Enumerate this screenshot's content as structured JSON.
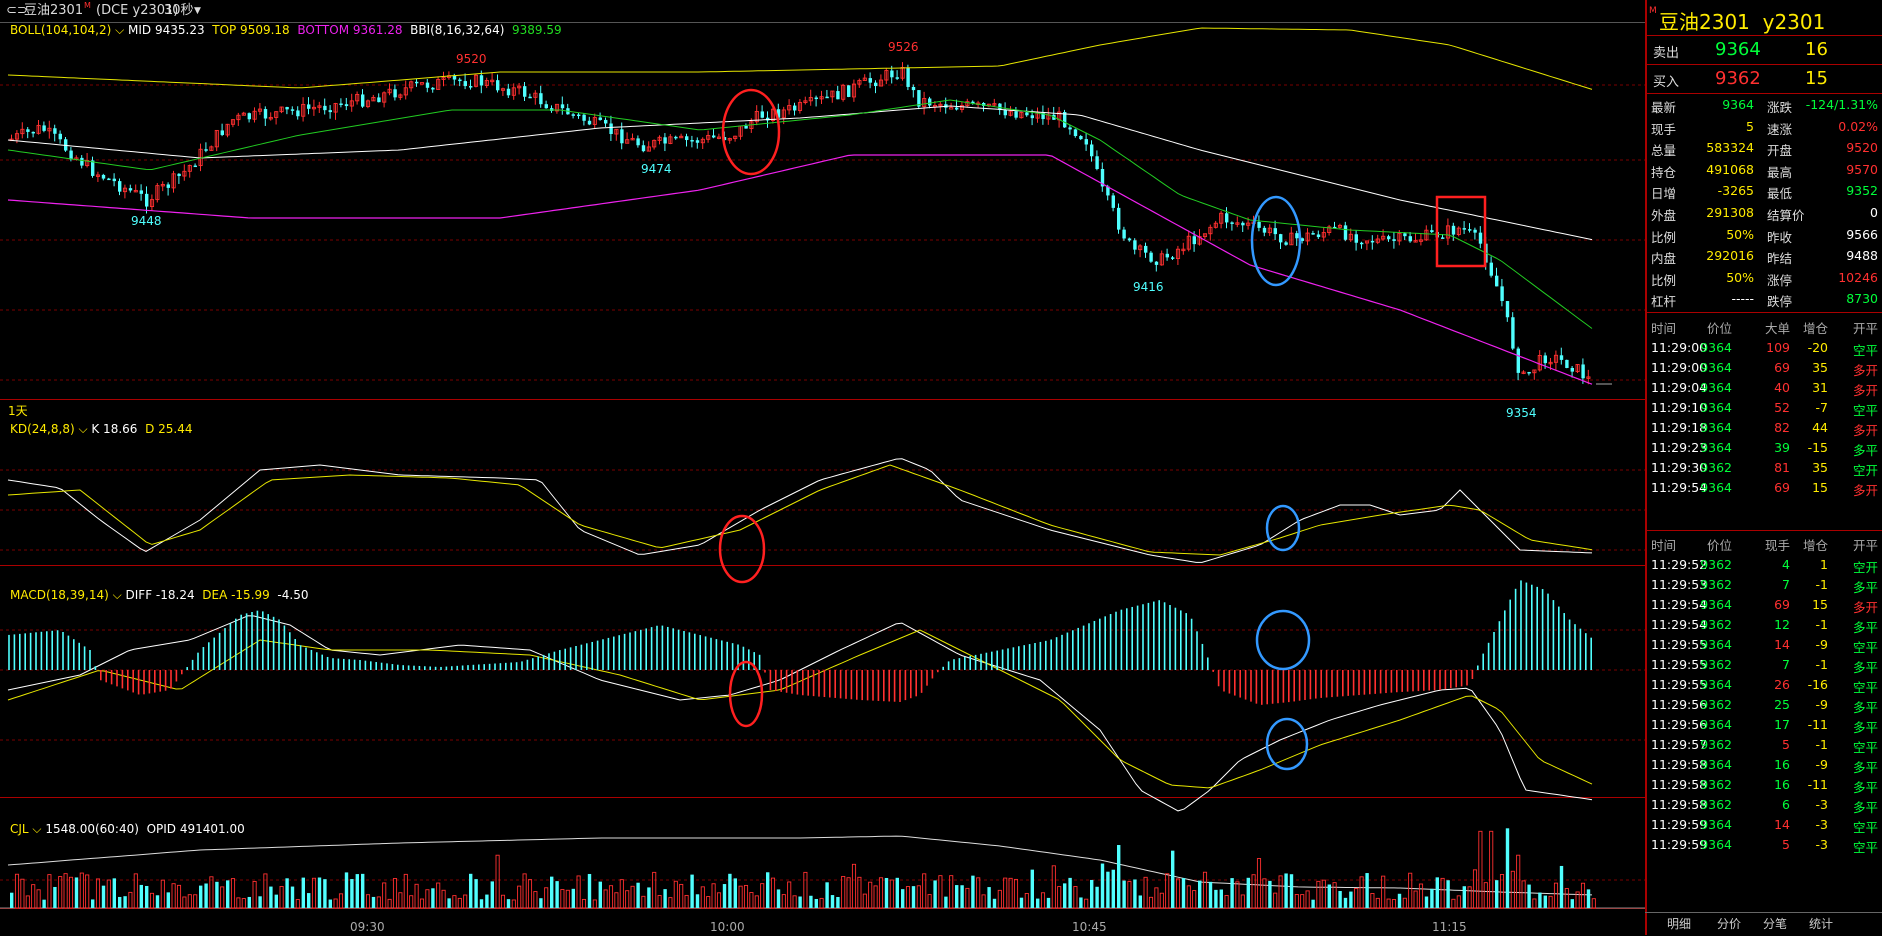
{
  "title_bar": {
    "symbol": "豆油2301",
    "superscript": "M",
    "exchange": "(DCE y2301)",
    "period": "30秒"
  },
  "colors": {
    "up": "#ff3030",
    "down": "#50ffff",
    "mid": "#ffffff",
    "top": "#e6e600",
    "bottom": "#ee22ee",
    "bbi": "#22cc22",
    "k": "#ffffff",
    "d": "#e6e600",
    "annot_red": "#ff2020",
    "annot_blue": "#3399ff",
    "grid": "#7a0000"
  },
  "main_legend": {
    "name": "BOLL(104,104,2)",
    "mid": "MID 9435.23",
    "top": "TOP 9509.18",
    "bottom": "BOTTOM 9361.28",
    "bbi_name": "BBI(8,16,32,64)",
    "bbi": "9389.59"
  },
  "price_marks": {
    "high1": "9520",
    "high2": "9526",
    "low1": "9448",
    "low2": "9474",
    "low3": "9416",
    "low4": "9354"
  },
  "period_label": "1天",
  "kd_legend": {
    "name": "KD(24,8,8)",
    "k": "K 18.66",
    "d": "D 25.44"
  },
  "macd_legend": {
    "name": "MACD(18,39,14)",
    "diff": "DIFF -18.24",
    "dea": "DEA -15.99",
    "macd": "-4.50"
  },
  "vol_legend": {
    "name": "CJL",
    "vol": "1548.00(60:40)",
    "opid": "OPID 491401.00"
  },
  "time_axis": [
    "09:30",
    "10:00",
    "10:45",
    "11:15"
  ],
  "quote": {
    "title": "豆油2301  y2301",
    "sell": {
      "label": "卖出",
      "price": "9364",
      "vol": "16"
    },
    "buy": {
      "label": "买入",
      "price": "9362",
      "vol": "15"
    },
    "stats": [
      {
        "l1": "最新",
        "v1": "9364",
        "c1": "grn",
        "l2": "涨跌",
        "v2": "-124/1.31%",
        "c2": "grn"
      },
      {
        "l1": "现手",
        "v1": "5",
        "c1": "yel",
        "l2": "速涨",
        "v2": "0.02%",
        "c2": "red"
      },
      {
        "l1": "总量",
        "v1": "583324",
        "c1": "yel",
        "l2": "开盘",
        "v2": "9520",
        "c2": "red"
      },
      {
        "l1": "持仓",
        "v1": "491068",
        "c1": "yel",
        "l2": "最高",
        "v2": "9570",
        "c2": "red"
      },
      {
        "l1": "日增",
        "v1": "-3265",
        "c1": "yel",
        "l2": "最低",
        "v2": "9352",
        "c2": "grn"
      },
      {
        "l1": "外盘",
        "v1": "291308",
        "c1": "yel",
        "l2": "结算价",
        "v2": "0",
        "c2": "wht"
      },
      {
        "l1": "比例",
        "v1": "50%",
        "c1": "yel",
        "l2": "昨收",
        "v2": "9566",
        "c2": "wht"
      },
      {
        "l1": "内盘",
        "v1": "292016",
        "c1": "yel",
        "l2": "昨结",
        "v2": "9488",
        "c2": "wht"
      },
      {
        "l1": "比例",
        "v1": "50%",
        "c1": "yel",
        "l2": "涨停",
        "v2": "10246",
        "c2": "red"
      },
      {
        "l1": "杠杆",
        "v1": "-----",
        "c1": "wht",
        "l2": "跌停",
        "v2": "8730",
        "c2": "grn"
      }
    ]
  },
  "table1": {
    "headers": [
      "时间",
      "价位",
      "大单",
      "增仓",
      "开平"
    ],
    "rows": [
      {
        "t": "11:29:00",
        "p": "9364",
        "v": "109",
        "z": "-20",
        "k": "空平",
        "vc": "red",
        "zc": "yel",
        "kc": "grn"
      },
      {
        "t": "11:29:00",
        "p": "9364",
        "v": "69",
        "z": "35",
        "k": "多开",
        "vc": "red",
        "zc": "yel",
        "kc": "red"
      },
      {
        "t": "11:29:04",
        "p": "9364",
        "v": "40",
        "z": "31",
        "k": "多开",
        "vc": "red",
        "zc": "yel",
        "kc": "red"
      },
      {
        "t": "11:29:10",
        "p": "9364",
        "v": "52",
        "z": "-7",
        "k": "空平",
        "vc": "red",
        "zc": "yel",
        "kc": "grn"
      },
      {
        "t": "11:29:18",
        "p": "9364",
        "v": "82",
        "z": "44",
        "k": "多开",
        "vc": "red",
        "zc": "yel",
        "kc": "red"
      },
      {
        "t": "11:29:23",
        "p": "9364",
        "v": "39",
        "z": "-15",
        "k": "多平",
        "vc": "grn",
        "zc": "yel",
        "kc": "grn"
      },
      {
        "t": "11:29:30",
        "p": "9362",
        "v": "81",
        "z": "35",
        "k": "空开",
        "vc": "red",
        "zc": "yel",
        "kc": "grn"
      },
      {
        "t": "11:29:54",
        "p": "9364",
        "v": "69",
        "z": "15",
        "k": "多开",
        "vc": "red",
        "zc": "yel",
        "kc": "red"
      }
    ]
  },
  "table2": {
    "headers": [
      "时间",
      "价位",
      "现手",
      "增仓",
      "开平"
    ],
    "rows": [
      {
        "t": "11:29:52",
        "p": "9362",
        "v": "4",
        "z": "1",
        "k": "空开",
        "vc": "grn",
        "zc": "yel",
        "kc": "grn"
      },
      {
        "t": "11:29:53",
        "p": "9362",
        "v": "7",
        "z": "-1",
        "k": "多平",
        "vc": "grn",
        "zc": "yel",
        "kc": "grn"
      },
      {
        "t": "11:29:54",
        "p": "9364",
        "v": "69",
        "z": "15",
        "k": "多开",
        "vc": "red",
        "zc": "yel",
        "kc": "red"
      },
      {
        "t": "11:29:54",
        "p": "9362",
        "v": "12",
        "z": "-1",
        "k": "多平",
        "vc": "grn",
        "zc": "yel",
        "kc": "grn"
      },
      {
        "t": "11:29:55",
        "p": "9364",
        "v": "14",
        "z": "-9",
        "k": "空平",
        "vc": "red",
        "zc": "yel",
        "kc": "grn"
      },
      {
        "t": "11:29:55",
        "p": "9362",
        "v": "7",
        "z": "-1",
        "k": "多平",
        "vc": "grn",
        "zc": "yel",
        "kc": "grn"
      },
      {
        "t": "11:29:55",
        "p": "9364",
        "v": "26",
        "z": "-16",
        "k": "空平",
        "vc": "red",
        "zc": "yel",
        "kc": "grn"
      },
      {
        "t": "11:29:56",
        "p": "9362",
        "v": "25",
        "z": "-9",
        "k": "多平",
        "vc": "grn",
        "zc": "yel",
        "kc": "grn"
      },
      {
        "t": "11:29:56",
        "p": "9364",
        "v": "17",
        "z": "-11",
        "k": "多平",
        "vc": "grn",
        "zc": "yel",
        "kc": "grn"
      },
      {
        "t": "11:29:57",
        "p": "9362",
        "v": "5",
        "z": "-1",
        "k": "空平",
        "vc": "red",
        "zc": "yel",
        "kc": "grn"
      },
      {
        "t": "11:29:58",
        "p": "9364",
        "v": "16",
        "z": "-9",
        "k": "多平",
        "vc": "grn",
        "zc": "yel",
        "kc": "grn"
      },
      {
        "t": "11:29:58",
        "p": "9362",
        "v": "16",
        "z": "-11",
        "k": "多平",
        "vc": "grn",
        "zc": "yel",
        "kc": "grn"
      },
      {
        "t": "11:29:58",
        "p": "9362",
        "v": "6",
        "z": "-3",
        "k": "多平",
        "vc": "grn",
        "zc": "yel",
        "kc": "grn"
      },
      {
        "t": "11:29:59",
        "p": "9364",
        "v": "14",
        "z": "-3",
        "k": "空平",
        "vc": "red",
        "zc": "yel",
        "kc": "grn"
      },
      {
        "t": "11:29:59",
        "p": "9364",
        "v": "5",
        "z": "-3",
        "k": "空平",
        "vc": "red",
        "zc": "yel",
        "kc": "grn"
      }
    ]
  },
  "tabs": [
    "明细",
    "分价",
    "分笔",
    "统计"
  ]
}
